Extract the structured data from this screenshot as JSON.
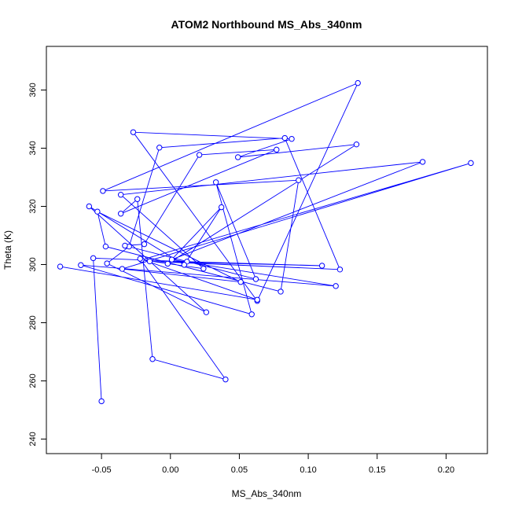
{
  "chart_data": {
    "type": "scatter",
    "title": "ATOM2 Northbound MS_Abs_340nm",
    "xlabel": "MS_Abs_340nm",
    "ylabel": "Theta (K)",
    "xlim": [
      -0.09,
      0.23
    ],
    "ylim": [
      235,
      375
    ],
    "xticks": [
      -0.05,
      0.0,
      0.05,
      0.1,
      0.15,
      0.2
    ],
    "xtick_labels": [
      "-0.05",
      "0.00",
      "0.05",
      "0.10",
      "0.15",
      "0.20"
    ],
    "yticks": [
      240,
      260,
      280,
      300,
      320,
      340,
      360
    ],
    "ytick_labels": [
      "240",
      "260",
      "280",
      "300",
      "320",
      "340",
      "360"
    ],
    "grid": false,
    "legend": "none",
    "connected": true,
    "color": "#0000ff",
    "points": [
      {
        "x": -0.05,
        "y": 253.0
      },
      {
        "x": -0.056,
        "y": 302.2
      },
      {
        "x": 0.012,
        "y": 301.0
      },
      {
        "x": 0.11,
        "y": 299.6
      },
      {
        "x": -0.015,
        "y": 301.1
      },
      {
        "x": 0.123,
        "y": 298.3
      },
      {
        "x": 0.083,
        "y": 343.5
      },
      {
        "x": -0.008,
        "y": 340.2
      },
      {
        "x": -0.03,
        "y": 306.2
      },
      {
        "x": -0.046,
        "y": 300.4
      },
      {
        "x": 0.026,
        "y": 283.6
      },
      {
        "x": -0.059,
        "y": 320.0
      },
      {
        "x": 0.01,
        "y": 299.9
      },
      {
        "x": 0.037,
        "y": 319.7
      },
      {
        "x": -0.002,
        "y": 300.3
      },
      {
        "x": 0.135,
        "y": 341.3
      },
      {
        "x": 0.049,
        "y": 336.9
      },
      {
        "x": 0.088,
        "y": 343.2
      },
      {
        "x": -0.027,
        "y": 345.5
      },
      {
        "x": 0.063,
        "y": 287.5
      },
      {
        "x": 0.136,
        "y": 362.4
      },
      {
        "x": -0.049,
        "y": 325.3
      },
      {
        "x": 0.093,
        "y": 329.0
      },
      {
        "x": 0.08,
        "y": 290.7
      },
      {
        "x": -0.047,
        "y": 306.2
      },
      {
        "x": -0.053,
        "y": 318.2
      },
      {
        "x": 0.051,
        "y": 294.0
      },
      {
        "x": -0.035,
        "y": 298.5
      },
      {
        "x": 0.218,
        "y": 334.9
      },
      {
        "x": -0.021,
        "y": 301.6
      },
      {
        "x": 0.024,
        "y": 298.6
      },
      {
        "x": -0.036,
        "y": 324.0
      },
      {
        "x": 0.183,
        "y": 335.3
      },
      {
        "x": 0.001,
        "y": 301.7
      },
      {
        "x": 0.12,
        "y": 292.6
      },
      {
        "x": -0.065,
        "y": 299.8
      },
      {
        "x": 0.059,
        "y": 282.9
      },
      {
        "x": 0.033,
        "y": 328.3
      },
      {
        "x": 0.062,
        "y": 295.0
      },
      {
        "x": -0.033,
        "y": 306.5
      },
      {
        "x": -0.019,
        "y": 307.0
      },
      {
        "x": 0.021,
        "y": 337.7
      },
      {
        "x": 0.077,
        "y": 339.5
      },
      {
        "x": -0.036,
        "y": 317.5
      },
      {
        "x": -0.024,
        "y": 322.5
      },
      {
        "x": -0.013,
        "y": 267.5
      },
      {
        "x": 0.04,
        "y": 260.5
      },
      {
        "x": -0.022,
        "y": 302.0
      },
      {
        "x": 0.063,
        "y": 287.9
      },
      {
        "x": -0.08,
        "y": 299.3
      }
    ]
  }
}
